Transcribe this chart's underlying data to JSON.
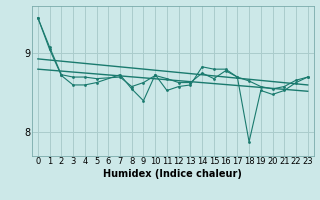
{
  "bg_color": "#cce8e8",
  "grid_color": "#aacccc",
  "line_color": "#1a7a6e",
  "xlabel": "Humidex (Indice chaleur)",
  "xlabel_fontsize": 7,
  "tick_fontsize": 6,
  "yticks": [
    8,
    9
  ],
  "ylim": [
    7.7,
    9.6
  ],
  "xlim": [
    -0.5,
    23.5
  ],
  "xticks": [
    0,
    1,
    2,
    3,
    4,
    5,
    6,
    7,
    8,
    9,
    10,
    11,
    12,
    13,
    14,
    15,
    16,
    17,
    18,
    19,
    20,
    21,
    22,
    23
  ],
  "series1_x": [
    0,
    1,
    2,
    3,
    4,
    5,
    7,
    8,
    9,
    10,
    11,
    12,
    13,
    14,
    15,
    16,
    17,
    18,
    19,
    20,
    21,
    22,
    23
  ],
  "series1_y": [
    9.45,
    9.08,
    8.73,
    8.7,
    8.7,
    8.68,
    8.7,
    8.58,
    8.63,
    8.72,
    8.68,
    8.63,
    8.63,
    8.75,
    8.68,
    8.78,
    8.7,
    8.65,
    8.58,
    8.55,
    8.58,
    8.66,
    8.7
  ],
  "series2_x": [
    0,
    1,
    2,
    3,
    4,
    5,
    7,
    8,
    9,
    10,
    11,
    12,
    13,
    14,
    15,
    16,
    17,
    18,
    19,
    20,
    21,
    22,
    23
  ],
  "series2_y": [
    9.45,
    9.05,
    8.72,
    8.6,
    8.6,
    8.63,
    8.73,
    8.55,
    8.4,
    8.73,
    8.53,
    8.58,
    8.6,
    8.83,
    8.8,
    8.8,
    8.7,
    7.88,
    8.53,
    8.48,
    8.53,
    8.63,
    8.7
  ],
  "trend1_x": [
    0,
    23
  ],
  "trend1_y": [
    8.93,
    8.6
  ],
  "trend2_x": [
    0,
    23
  ],
  "trend2_y": [
    8.8,
    8.52
  ]
}
